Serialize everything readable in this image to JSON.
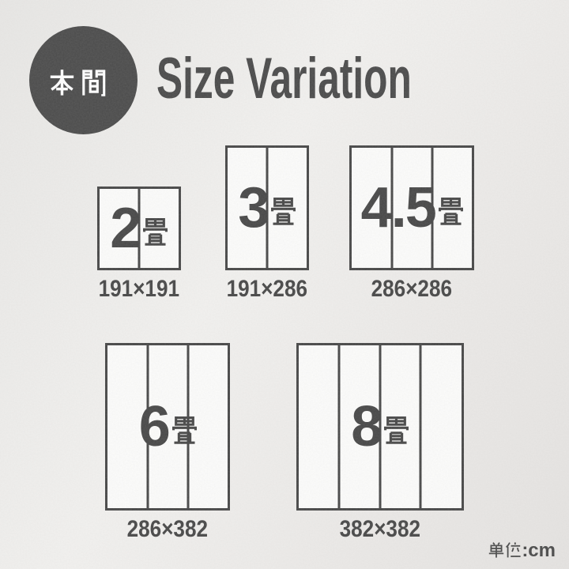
{
  "page": {
    "badge": {
      "text": "本間"
    },
    "title": "Size Variation",
    "unit_note": {
      "kanji": "単位",
      "suffix": ":cm",
      "full_text": "単位:cm"
    },
    "colors": {
      "ink": "#474747",
      "badge_bg": "#4b4b4b",
      "paper": "#eae9e7",
      "panel_fill": "#fcfcfb"
    }
  },
  "sizes": [
    {
      "tatami_count": "2",
      "tatami_unit": "畳",
      "dimensions": "191×191",
      "width_cm": 191,
      "height_cm": 191,
      "panels": 2
    },
    {
      "tatami_count": "3",
      "tatami_unit": "畳",
      "dimensions": "191×286",
      "width_cm": 191,
      "height_cm": 286,
      "panels": 2
    },
    {
      "tatami_count": "4.5",
      "tatami_unit": "畳",
      "dimensions": "286×286",
      "width_cm": 286,
      "height_cm": 286,
      "panels": 3
    },
    {
      "tatami_count": "6",
      "tatami_unit": "畳",
      "dimensions": "286×382",
      "width_cm": 286,
      "height_cm": 382,
      "panels": 3
    },
    {
      "tatami_count": "8",
      "tatami_unit": "畳",
      "dimensions": "382×382",
      "width_cm": 382,
      "height_cm": 382,
      "panels": 4
    }
  ]
}
